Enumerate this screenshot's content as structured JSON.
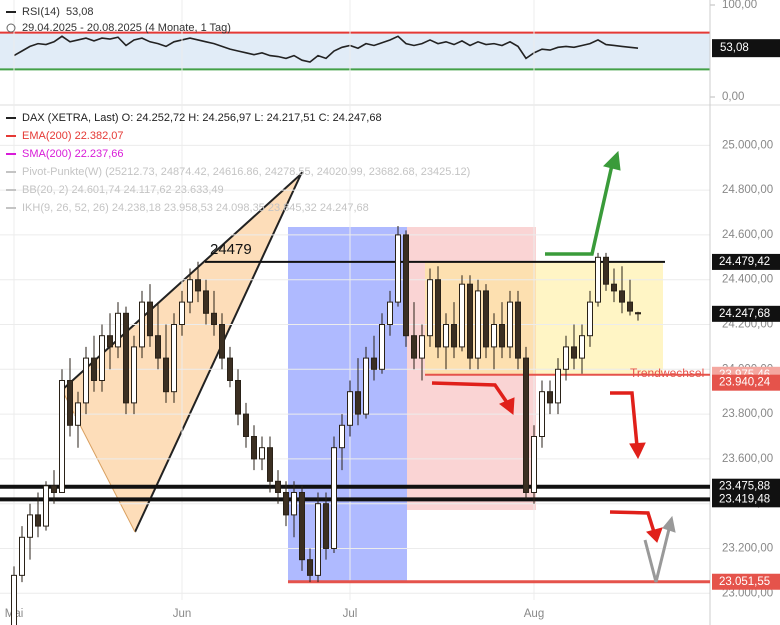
{
  "rsi_panel": {
    "title": "RSI(14)",
    "value_text": "53,08",
    "range": "29.04.2025 - 20.08.2025 (4 Monate, 1 Tag)"
  },
  "chart_data": [
    {
      "type": "line",
      "color": "#222",
      "values": [
        45,
        50,
        55,
        58,
        57,
        60,
        66,
        60,
        62,
        64,
        61,
        64,
        63,
        65,
        56,
        62,
        64,
        60,
        58,
        55,
        60,
        62,
        64,
        62,
        60,
        58,
        55,
        52,
        50,
        48,
        46,
        48,
        45,
        44,
        42,
        45,
        40,
        38,
        45,
        42,
        50,
        54,
        56,
        53,
        58,
        56,
        59,
        62,
        66,
        58,
        56,
        58,
        62,
        58,
        60,
        57,
        61,
        56,
        60,
        57,
        58,
        56,
        60,
        55,
        42,
        48,
        52,
        51,
        54,
        55,
        54,
        56,
        58,
        62,
        57,
        56,
        55,
        54,
        53.08
      ],
      "ylim": [
        0,
        100
      ],
      "yticks": [
        {
          "value": 100,
          "label": "100,00"
        },
        {
          "value": 0,
          "label": "0,00"
        }
      ],
      "levels": [
        {
          "value": 70,
          "color": "#e53935"
        },
        {
          "value": 30,
          "color": "#43a047"
        }
      ],
      "last_tag": {
        "value": 53.08,
        "label": "53,08"
      }
    },
    {
      "type": "candlestick",
      "open": [
        22850,
        23080,
        23250,
        23350,
        23300,
        23480,
        23450,
        23950,
        23750,
        23850,
        24050,
        23950,
        24150,
        24100,
        24250,
        23850,
        24100,
        24300,
        24150,
        24050,
        23900,
        24200,
        24300,
        24400,
        24350,
        24250,
        24200,
        24050,
        23950,
        23800,
        23700,
        23600,
        23650,
        23500,
        23450,
        23350,
        23450,
        23150,
        23080,
        23400,
        23200,
        23650,
        23750,
        23900,
        23800,
        24050,
        24000,
        24200,
        24300,
        24600,
        24150,
        24050,
        24150,
        24400,
        24100,
        24200,
        24100,
        24380,
        24050,
        24350,
        24100,
        24200,
        24100,
        24300,
        24050,
        23450,
        23700,
        23900,
        23850,
        24000,
        24100,
        24050,
        24150,
        24300,
        24500,
        24380,
        24350,
        24300,
        24252.72
      ],
      "high": [
        23120,
        23300,
        23400,
        23450,
        23500,
        23550,
        24000,
        24050,
        23900,
        24100,
        24150,
        24200,
        24250,
        24300,
        24280,
        24150,
        24350,
        24380,
        24300,
        24200,
        24250,
        24350,
        24450,
        24480,
        24400,
        24350,
        24250,
        24100,
        24000,
        23850,
        23750,
        23700,
        23700,
        23550,
        23500,
        23500,
        23480,
        23200,
        23450,
        23450,
        23700,
        23800,
        23950,
        24050,
        24100,
        24150,
        24250,
        24350,
        24640,
        24620,
        24300,
        24200,
        24450,
        24460,
        24250,
        24300,
        24420,
        24420,
        24400,
        24380,
        24250,
        24300,
        24350,
        24350,
        24100,
        23750,
        23950,
        23950,
        24050,
        24150,
        24200,
        24200,
        24350,
        24520,
        24520,
        24450,
        24460,
        24400,
        24256.97
      ],
      "low": [
        22800,
        23050,
        23150,
        23250,
        23280,
        23400,
        23450,
        23700,
        23650,
        23800,
        23900,
        23900,
        24000,
        24050,
        23800,
        23800,
        24050,
        24100,
        24000,
        23850,
        23850,
        24150,
        24250,
        24300,
        24200,
        24150,
        24000,
        23920,
        23750,
        23650,
        23550,
        23550,
        23450,
        23400,
        23300,
        23250,
        23100,
        23050,
        23050,
        23150,
        23180,
        23550,
        23700,
        23750,
        23780,
        23950,
        23980,
        24150,
        24280,
        24100,
        24000,
        23950,
        24100,
        24050,
        24000,
        24050,
        24080,
        24000,
        24000,
        24050,
        24000,
        24050,
        24050,
        24000,
        23420,
        23400,
        23650,
        23800,
        23800,
        23950,
        24000,
        23980,
        24100,
        24280,
        24350,
        24300,
        24250,
        24240,
        24217.51
      ],
      "close": [
        23080,
        23250,
        23350,
        23300,
        23480,
        23450,
        23950,
        23750,
        23850,
        24050,
        23950,
        24150,
        24100,
        24250,
        23850,
        24100,
        24300,
        24150,
        24050,
        23900,
        24200,
        24300,
        24400,
        24350,
        24250,
        24200,
        24050,
        23950,
        23800,
        23700,
        23600,
        23650,
        23500,
        23450,
        23350,
        23450,
        23150,
        23080,
        23400,
        23200,
        23650,
        23750,
        23900,
        23800,
        24050,
        24000,
        24200,
        24300,
        24600,
        24150,
        24050,
        24150,
        24400,
        24100,
        24200,
        24100,
        24380,
        24050,
        24350,
        24100,
        24200,
        24100,
        24300,
        24050,
        23450,
        23700,
        23900,
        23850,
        24000,
        24100,
        24050,
        24150,
        24300,
        24500,
        24380,
        24350,
        24300,
        24260,
        24247.68
      ],
      "up_color": "#ffffff",
      "down_color": "#3b2f22",
      "ylim": [
        22970,
        25180
      ],
      "yticks": [
        {
          "value": 25000,
          "label": "25.000,00"
        },
        {
          "value": 24800,
          "label": "24.800,00"
        },
        {
          "value": 24600,
          "label": "24.600,00"
        },
        {
          "value": 24400,
          "label": "24.400,00"
        },
        {
          "value": 24200,
          "label": "24.200,00"
        },
        {
          "value": 24000,
          "label": "24.000,00"
        },
        {
          "value": 23800,
          "label": "23.800,00"
        },
        {
          "value": 23600,
          "label": "23.600,00"
        },
        {
          "value": 23400,
          "label": "23.400,00"
        },
        {
          "value": 23200,
          "label": "23.200,00"
        },
        {
          "value": 23000,
          "label": "23.000,00"
        }
      ],
      "xticks": [
        {
          "value": 0,
          "label": "Mai"
        },
        {
          "value": 21,
          "label": "Jun"
        },
        {
          "value": 42,
          "label": "Jul"
        },
        {
          "value": 65,
          "label": "Aug"
        }
      ],
      "grid": true,
      "legend": [
        {
          "text": "DAX (XETRA, Last)  O: 24.252,72  H: 24.256,97  L: 24.217,51  C: 24.247,68",
          "color": "#222"
        },
        {
          "text": "EMA(200)  22.382,07",
          "color": "#e53935"
        },
        {
          "text": "SMA(200)  22.237,66",
          "color": "#d81bd8"
        },
        {
          "text": "Pivot-Punkte(W)  (25212.73, 24874.42, 24616.86, 24278.55, 24020.99, 23682.68, 23425.12)",
          "color": "#c4c4c4"
        },
        {
          "text": "BB(20, 2)  24.601,74  24.117,62  23.633,49",
          "color": "#c4c4c4"
        },
        {
          "text": "IKH(9, 26, 52, 26)  24.238,18  23.958,53  24.098,35  23.845,32  24.247,68",
          "color": "#c4c4c4"
        }
      ],
      "price_tags": [
        {
          "value": 24479.42,
          "label": "24.479,42",
          "color": "#111"
        },
        {
          "value": 24247.68,
          "label": "24.247,68",
          "color": "#111"
        },
        {
          "value": 23975.46,
          "label": "23.975,46",
          "color": "#f4a7a0"
        },
        {
          "value": 23940.24,
          "label": "23.940,24",
          "color": "#e5534b"
        },
        {
          "value": 23475.88,
          "label": "23.475,88",
          "color": "#111"
        },
        {
          "value": 23419.48,
          "label": "23.419,48",
          "color": "#111"
        },
        {
          "value": 23051.55,
          "label": "23.051,55",
          "color": "#e5534b"
        }
      ],
      "annotations": {
        "resistance": "24479",
        "trend": "Trendwechsel"
      }
    }
  ]
}
